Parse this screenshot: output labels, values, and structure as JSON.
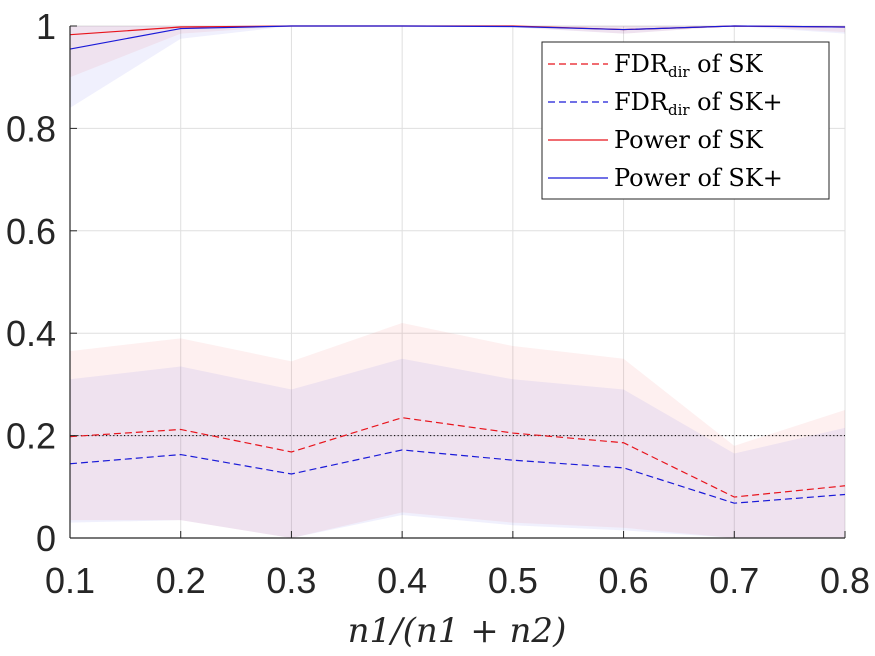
{
  "chart_data": {
    "type": "line",
    "title": "",
    "xlabel": "n1/(n1 + n2)",
    "ylabel": "",
    "x": [
      0.1,
      0.2,
      0.3,
      0.4,
      0.5,
      0.6,
      0.7,
      0.8
    ],
    "xlim": [
      0.1,
      0.8
    ],
    "ylim": [
      0,
      1
    ],
    "xticks": [
      "0.1",
      "0.2",
      "0.3",
      "0.4",
      "0.5",
      "0.6",
      "0.7",
      "0.8"
    ],
    "yticks": [
      "0",
      "0.2",
      "0.4",
      "0.6",
      "0.8",
      "1"
    ],
    "grid": true,
    "target_level": 0.2,
    "legend_position": "top-right",
    "series": [
      {
        "name": "FDR_dir of SK",
        "legend_main": "FDR",
        "legend_sub": "dir",
        "legend_rest": " of SK",
        "color": "#e8141c",
        "style": "dashed",
        "values": [
          0.198,
          0.212,
          0.168,
          0.235,
          0.205,
          0.186,
          0.08,
          0.102
        ],
        "band_lower": [
          0.035,
          0.035,
          0.0,
          0.05,
          0.03,
          0.02,
          0.0,
          0.0
        ],
        "band_upper": [
          0.365,
          0.39,
          0.345,
          0.42,
          0.375,
          0.35,
          0.18,
          0.25
        ]
      },
      {
        "name": "FDR_dir of SK+",
        "legend_main": "FDR",
        "legend_sub": "dir",
        "legend_rest": " of SK+",
        "color": "#1a1ad8",
        "style": "dashed",
        "values": [
          0.145,
          0.163,
          0.125,
          0.172,
          0.152,
          0.137,
          0.068,
          0.085
        ],
        "band_lower": [
          0.03,
          0.035,
          0.0,
          0.045,
          0.025,
          0.015,
          0.0,
          0.0
        ],
        "band_upper": [
          0.31,
          0.335,
          0.29,
          0.35,
          0.31,
          0.29,
          0.165,
          0.215
        ]
      },
      {
        "name": "Power of SK",
        "legend_main": "Power of SK",
        "legend_sub": "",
        "legend_rest": "",
        "color": "#e8141c",
        "style": "solid",
        "values": [
          0.983,
          0.998,
          1.0,
          1.0,
          1.0,
          0.993,
          1.0,
          0.998
        ],
        "band_lower": [
          0.9,
          0.985,
          1.0,
          1.0,
          0.998,
          0.985,
          1.0,
          0.988
        ],
        "band_upper": [
          1.0,
          1.0,
          1.0,
          1.0,
          1.0,
          1.0,
          1.0,
          1.0
        ]
      },
      {
        "name": "Power of SK+",
        "legend_main": "Power of SK+",
        "legend_sub": "",
        "legend_rest": "",
        "color": "#1a1ad8",
        "style": "solid",
        "values": [
          0.955,
          0.995,
          1.0,
          1.0,
          0.999,
          0.993,
          1.0,
          0.998
        ],
        "band_lower": [
          0.84,
          0.975,
          1.0,
          1.0,
          0.997,
          0.985,
          1.0,
          0.985
        ],
        "band_upper": [
          1.0,
          1.0,
          1.0,
          1.0,
          1.0,
          1.0,
          1.0,
          1.0
        ]
      }
    ]
  }
}
